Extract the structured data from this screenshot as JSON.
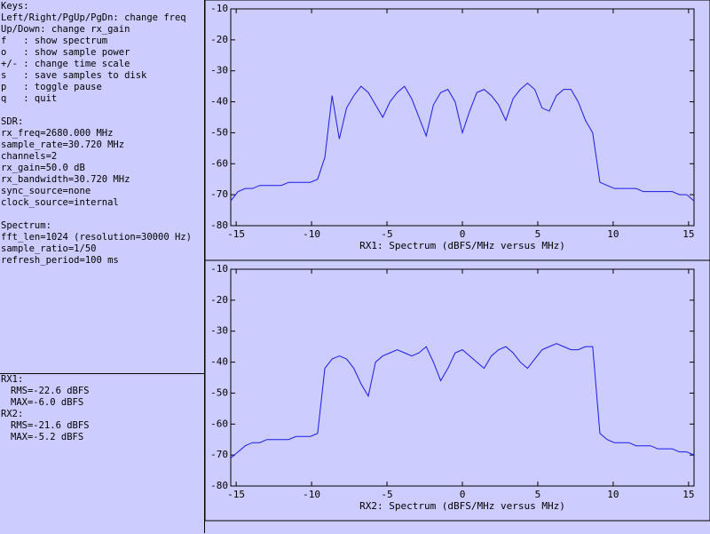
{
  "panel": {
    "keys": [
      "Keys:",
      "Left/Right/PgUp/PgDn: change freq",
      "Up/Down: change rx_gain",
      "f   : show spectrum",
      "o   : show sample power",
      "+/- : change time scale",
      "s   : save samples to disk",
      "p   : toggle pause",
      "q   : quit"
    ],
    "sdr": [
      "SDR:",
      "rx_freq=2680.000 MHz",
      "sample_rate=30.720 MHz",
      "channels=2",
      "rx_gain=50.0 dB",
      "rx_bandwidth=30.720 MHz",
      "sync_source=none",
      "clock_source=internal"
    ],
    "spectrum": [
      "Spectrum:",
      "fft_len=1024 (resolution=30000 Hz)",
      "sample_ratio=1/50",
      "refresh_period=100 ms"
    ],
    "stats": [
      {
        "name": "RX1:",
        "rms": "RMS=-22.6 dBFS",
        "max": "MAX=-6.0 dBFS"
      },
      {
        "name": "RX2:",
        "rms": "RMS=-21.6 dBFS",
        "max": "MAX=-5.2 dBFS"
      }
    ]
  },
  "chart_data": [
    {
      "type": "line",
      "xlabel": "RX1: Spectrum (dBFS/MHz versus MHz)",
      "color": "#1a1ae6",
      "xlim": [
        -15.36,
        15.36
      ],
      "ylim": [
        -80,
        -10
      ],
      "xticks": [
        -15,
        -10,
        -5,
        0,
        5,
        10,
        15
      ],
      "yticks": [
        -10,
        -20,
        -30,
        -40,
        -50,
        -60,
        -70,
        -80
      ],
      "x": [
        -15.36,
        -14.88,
        -14.4,
        -13.92,
        -13.44,
        -12.96,
        -12.48,
        -12.0,
        -11.52,
        -11.04,
        -10.56,
        -10.08,
        -9.6,
        -9.12,
        -8.64,
        -8.16,
        -7.68,
        -7.2,
        -6.72,
        -6.24,
        -5.76,
        -5.28,
        -4.8,
        -4.32,
        -3.84,
        -3.36,
        -2.88,
        -2.4,
        -1.92,
        -1.44,
        -0.96,
        -0.48,
        0.0,
        0.48,
        0.96,
        1.44,
        1.92,
        2.4,
        2.88,
        3.36,
        3.84,
        4.32,
        4.8,
        5.28,
        5.76,
        6.24,
        6.72,
        7.2,
        7.68,
        8.16,
        8.64,
        9.12,
        9.6,
        10.08,
        10.56,
        11.04,
        11.52,
        12.0,
        12.48,
        12.96,
        13.44,
        13.92,
        14.4,
        14.88,
        15.36
      ],
      "values": [
        -72,
        -69,
        -68,
        -68,
        -67,
        -67,
        -67,
        -67,
        -66,
        -66,
        -66,
        -66,
        -65,
        -58,
        -38,
        -52,
        -42,
        -38,
        -35,
        -37,
        -41,
        -45,
        -40,
        -37,
        -35,
        -39,
        -45,
        -51,
        -41,
        -37,
        -36,
        -40,
        -50,
        -43,
        -37,
        -36,
        -38,
        -41,
        -46,
        -39,
        -36,
        -34,
        -36,
        -42,
        -43,
        -38,
        -36,
        -36,
        -40,
        -46,
        -50,
        -66,
        -67,
        -68,
        -68,
        -68,
        -68,
        -69,
        -69,
        -69,
        -69,
        -69,
        -70,
        -70,
        -72
      ]
    },
    {
      "type": "line",
      "xlabel": "RX2: Spectrum (dBFS/MHz versus MHz)",
      "color": "#1a1ae6",
      "xlim": [
        -15.36,
        15.36
      ],
      "ylim": [
        -80,
        -10
      ],
      "xticks": [
        -15,
        -10,
        -5,
        0,
        5,
        10,
        15
      ],
      "yticks": [
        -10,
        -20,
        -30,
        -40,
        -50,
        -60,
        -70,
        -80
      ],
      "x": [
        -15.36,
        -14.88,
        -14.4,
        -13.92,
        -13.44,
        -12.96,
        -12.48,
        -12.0,
        -11.52,
        -11.04,
        -10.56,
        -10.08,
        -9.6,
        -9.12,
        -8.64,
        -8.16,
        -7.68,
        -7.2,
        -6.72,
        -6.24,
        -5.76,
        -5.28,
        -4.8,
        -4.32,
        -3.84,
        -3.36,
        -2.88,
        -2.4,
        -1.92,
        -1.44,
        -0.96,
        -0.48,
        0.0,
        0.48,
        0.96,
        1.44,
        1.92,
        2.4,
        2.88,
        3.36,
        3.84,
        4.32,
        4.8,
        5.28,
        5.76,
        6.24,
        6.72,
        7.2,
        7.68,
        8.16,
        8.64,
        9.12,
        9.6,
        10.08,
        10.56,
        11.04,
        11.52,
        12.0,
        12.48,
        12.96,
        13.44,
        13.92,
        14.4,
        14.88,
        15.36
      ],
      "values": [
        -71,
        -69,
        -67,
        -66,
        -66,
        -65,
        -65,
        -65,
        -65,
        -64,
        -64,
        -64,
        -63,
        -42,
        -39,
        -38,
        -39,
        -42,
        -47,
        -51,
        -40,
        -38,
        -37,
        -36,
        -37,
        -38,
        -37,
        -35,
        -40,
        -46,
        -42,
        -37,
        -36,
        -38,
        -40,
        -42,
        -38,
        -36,
        -35,
        -37,
        -40,
        -42,
        -39,
        -36,
        -35,
        -34,
        -35,
        -36,
        -36,
        -35,
        -35,
        -63,
        -65,
        -66,
        -66,
        -66,
        -67,
        -67,
        -67,
        -68,
        -68,
        -68,
        -69,
        -69,
        -70
      ]
    }
  ]
}
